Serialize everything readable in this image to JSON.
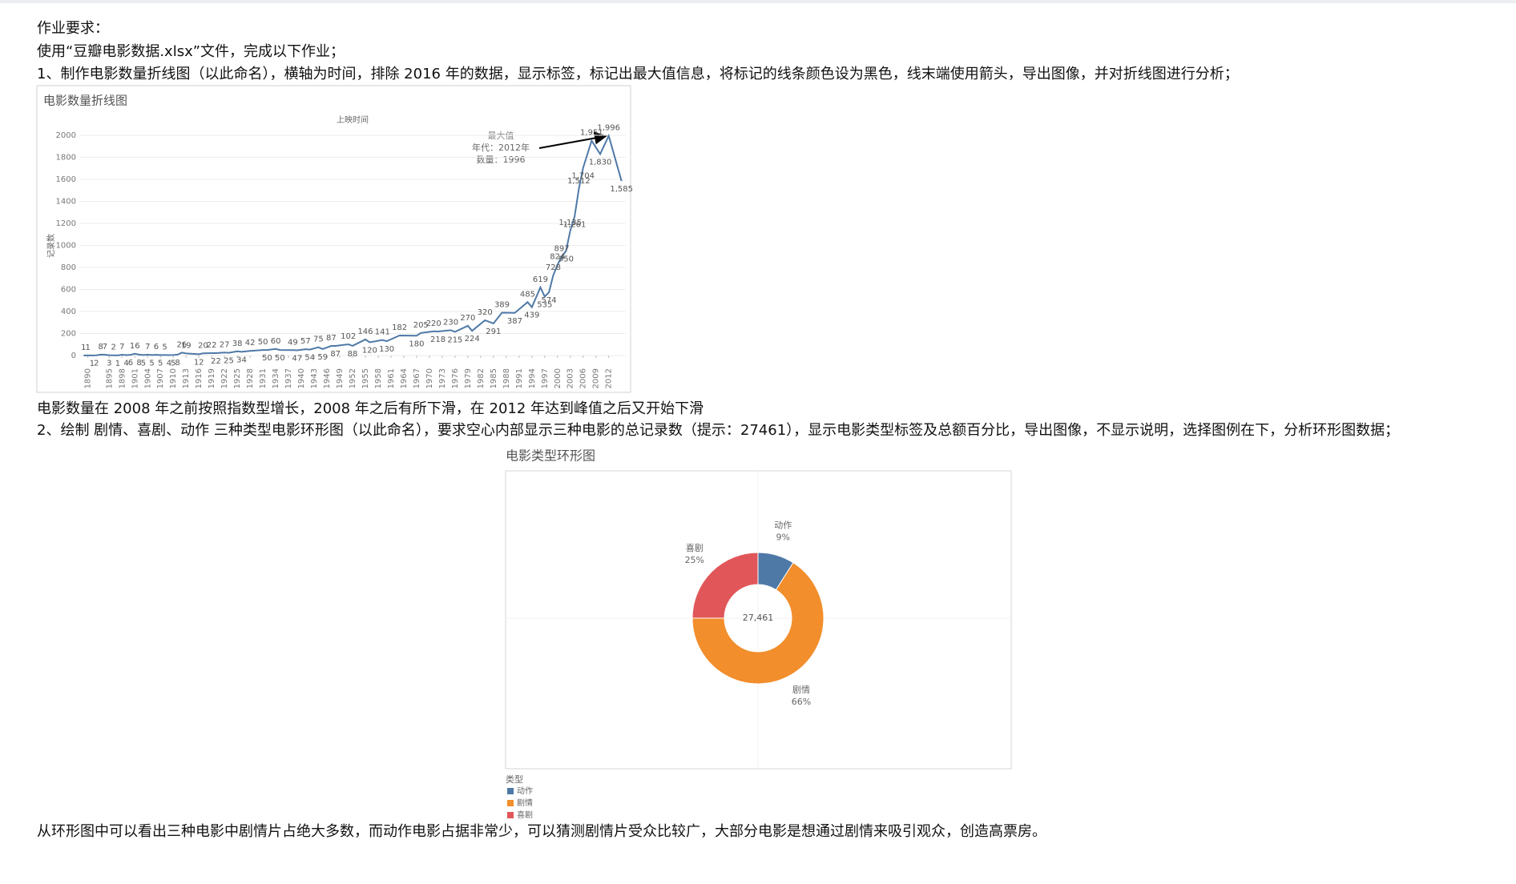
{
  "document": {
    "paragraphs": [
      "作业要求：",
      "使用“豆瓣电影数据.xlsx”文件，完成以下作业；",
      "1、制作电影数量折线图（以此命名），横轴为时间，排除 2016 年的数据，显示标签，标记出最大值信息，将标记的线条颜色设为黑色，线末端使用箭头，导出图像，并对折线图进行分析；",
      "电影数量在 2008 年之前按照指数型增长，2008 年之后有所下滑，在 2012 年达到峰值之后又开始下滑",
      "2、绘制 剧情、喜剧、动作 三种类型电影环形图（以此命名），要求空心内部显示三种电影的总记录数（提示：27461），显示电影类型标签及总额百分比，导出图像，不显示说明，选择图例在下，分析环形图数据；",
      "从环形图中可以看出三种电影中剧情片占绝大多数，而动作电影占据非常少，可以猜测剧情片受众比较广，大部分电影是想通过剧情来吸引观众，创造高票房。"
    ]
  },
  "chart_data": [
    {
      "type": "line",
      "title": "电影数量折线图",
      "x_label": "上映时间",
      "y_label": "记录数",
      "color": "#4e79a7",
      "annotation": [
        "最大值",
        "年代：2012年",
        "数量：1996"
      ],
      "x": [
        1889,
        1890,
        1891,
        1892,
        1893,
        1894,
        1895,
        1896,
        1897,
        1898,
        1899,
        1900,
        1901,
        1902,
        1903,
        1904,
        1905,
        1906,
        1907,
        1908,
        1909,
        1910,
        1911,
        1912,
        1913,
        1916,
        1917,
        1919,
        1920,
        1922,
        1923,
        1925,
        1926,
        1928,
        1931,
        1932,
        1934,
        1935,
        1938,
        1939,
        1941,
        1942,
        1944,
        1945,
        1947,
        1948,
        1951,
        1952,
        1955,
        1956,
        1959,
        1960,
        1963,
        1967,
        1968,
        1971,
        1972,
        1975,
        1976,
        1979,
        1980,
        1983,
        1985,
        1987,
        1990,
        1993,
        1994,
        1996,
        1997,
        1998,
        1999,
        2000,
        2001,
        2002,
        2003,
        2004,
        2005,
        2006,
        2008,
        2010,
        2012,
        2015
      ],
      "values": [
        1,
        1,
        1,
        2,
        8,
        7,
        3,
        2,
        1,
        7,
        4,
        6,
        16,
        8,
        5,
        7,
        5,
        6,
        5,
        5,
        4,
        5,
        8,
        26,
        19,
        12,
        20,
        22,
        22,
        27,
        25,
        38,
        34,
        42,
        50,
        50,
        60,
        50,
        49,
        47,
        57,
        54,
        75,
        59,
        87,
        87,
        102,
        88,
        146,
        120,
        141,
        130,
        182,
        180,
        205,
        220,
        218,
        230,
        215,
        270,
        224,
        320,
        291,
        389,
        387,
        485,
        439,
        619,
        535,
        574,
        728,
        824,
        897,
        950,
        1135,
        1261,
        1512,
        1704,
        1951,
        1830,
        1996,
        1585
      ],
      "value_labels": [
        "1",
        "1",
        "1",
        "2",
        "8",
        "7",
        "3",
        "2",
        "1",
        "7",
        "4",
        "6",
        "16",
        "8",
        "5",
        "7",
        "5",
        "6",
        "5",
        "5",
        "4",
        "5",
        "8",
        "26",
        "19",
        "12",
        "20",
        "22",
        "22",
        "27",
        "25",
        "38",
        "34",
        "42",
        "50",
        "50",
        "60",
        "50",
        "49",
        "47",
        "57",
        "54",
        "75",
        "59",
        "87",
        "87",
        "102",
        "88",
        "146",
        "120",
        "141",
        "130",
        "182",
        "180",
        "205",
        "220",
        "218",
        "230",
        "215",
        "270",
        "224",
        "320",
        "291",
        "389",
        "387",
        "485",
        "439",
        "619",
        "535",
        "574",
        "728",
        "824",
        "897",
        "950",
        "1,135",
        "1,261",
        "1,512",
        "1,704",
        "1,951",
        "1,830",
        "1,996",
        "1,585"
      ],
      "xlim": [
        1888,
        2016
      ],
      "ylim": [
        0,
        2000
      ],
      "xticks": [
        1890,
        1895,
        1898,
        1901,
        1904,
        1907,
        1910,
        1913,
        1916,
        1919,
        1922,
        1925,
        1928,
        1931,
        1934,
        1937,
        1940,
        1943,
        1946,
        1949,
        1952,
        1955,
        1958,
        1961,
        1964,
        1967,
        1970,
        1973,
        1976,
        1979,
        1982,
        1985,
        1988,
        1991,
        1994,
        1997,
        2000,
        2003,
        2006,
        2009,
        2012
      ],
      "yticks": [
        0,
        200,
        400,
        600,
        800,
        1000,
        1200,
        1400,
        1600,
        1800,
        2000
      ],
      "grid": true
    },
    {
      "type": "donut",
      "title": "电影类型环形图",
      "categories": [
        "动作",
        "剧情",
        "喜剧"
      ],
      "values": [
        9,
        66,
        25
      ],
      "value_labels": [
        "9%",
        "66%",
        "25%"
      ],
      "colors": [
        "#4e79a7",
        "#f28e2b",
        "#e15759"
      ],
      "center": {
        "value": 27461,
        "label": "27,461"
      },
      "legend_title": "类型",
      "legend": "bottom"
    }
  ]
}
